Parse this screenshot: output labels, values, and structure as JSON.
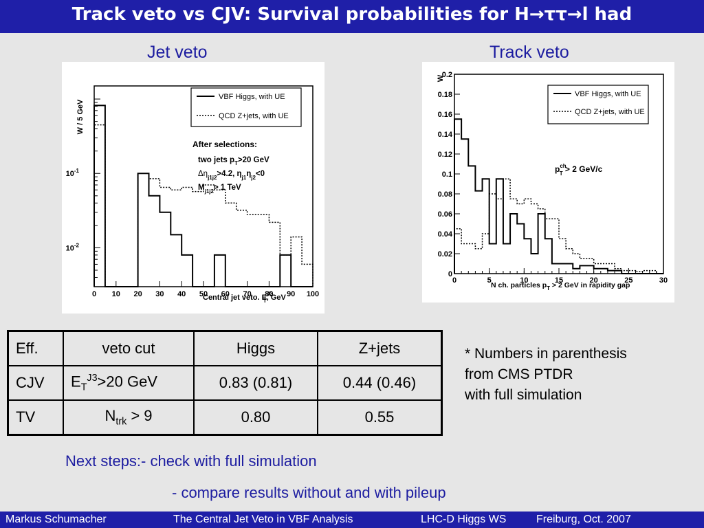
{
  "slide": {
    "title": "Track veto vs CJV: Survival probabilities for H→ττ→l had",
    "left_heading": "Jet veto",
    "right_heading": "Track veto"
  },
  "chart_data": [
    {
      "type": "histogram",
      "ylabel": "W / 5 GeV",
      "xlabel": "Central jet veto. E",
      "xlabel_sup": "J3",
      "xlabel_sub": "T",
      "xlabel_unit": ", GeV",
      "log_y": true,
      "xlim": [
        0,
        100
      ],
      "ylim": [
        0.003,
        1.5
      ],
      "x_ticks": [
        "0",
        "10",
        "20",
        "30",
        "40",
        "50",
        "60",
        "70",
        "80",
        "90",
        "100"
      ],
      "y_ticks": [
        {
          "base": "10",
          "exp": "-1",
          "value": 0.1
        },
        {
          "base": "10",
          "exp": "-2",
          "value": 0.01
        }
      ],
      "bin_width": 5,
      "legend": [
        {
          "label": "VBF Higgs, with UE",
          "style": "solid"
        },
        {
          "label": "QCD Z+jets, with UE",
          "style": "dotted"
        }
      ],
      "annotations": {
        "heading": "After selections:",
        "line1": "two jets p",
        "line1_sub": "T",
        "line1_end": ">20 GeV",
        "line2a": "Δη",
        "line2_sub1": "j1j2",
        "line2b": ">4.2, η",
        "line2_sub2": "j1",
        "line2c": "η",
        "line2_sub3": "j2",
        "line2d": "<0",
        "line3a": "M",
        "line3_sub": "j1j2",
        "line3b": "> 1 TeV"
      },
      "series": [
        {
          "name": "VBF Higgs, with UE",
          "style": "solid",
          "values": [
            0.82,
            0,
            0,
            0,
            0.1,
            0.05,
            0.03,
            0.015,
            0.008,
            0,
            0,
            0.008,
            0,
            0,
            0,
            0,
            0,
            0.008,
            0,
            0
          ]
        },
        {
          "name": "QCD Z+jets, with UE",
          "style": "dotted",
          "values": [
            0.45,
            0,
            0,
            0,
            0.1,
            0.085,
            0.065,
            0.06,
            0.065,
            0.057,
            0.07,
            0.06,
            0.04,
            0.032,
            0.028,
            0.028,
            0.022,
            0.008,
            0.014,
            0.006
          ]
        }
      ]
    },
    {
      "type": "histogram",
      "ylabel": "W",
      "xlabel": "N ch. particles p",
      "xlabel_sub": "T",
      "xlabel_end": " > 2 GeV in rapidity gap",
      "log_y": false,
      "xlim": [
        0,
        30
      ],
      "ylim": [
        0,
        0.2
      ],
      "x_ticks": [
        "0",
        "5",
        "10",
        "15",
        "20",
        "25",
        "30"
      ],
      "y_ticks": [
        "0",
        "0.02",
        "0.04",
        "0.06",
        "0.08",
        "0.1",
        "0.12",
        "0.14",
        "0.16",
        "0.18",
        "0.2"
      ],
      "bin_width": 1,
      "legend": [
        {
          "label": "VBF Higgs, with UE",
          "style": "solid"
        },
        {
          "label": "QCD Z+jets, with UE",
          "style": "dotted"
        }
      ],
      "annotation": {
        "a": "p",
        "sup": "ch",
        "sub": "T",
        "b": " > 2 GeV/c"
      },
      "series": [
        {
          "name": "VBF Higgs, with UE",
          "style": "solid",
          "values": [
            0.155,
            0.135,
            0.108,
            0.083,
            0.095,
            0.03,
            0.095,
            0.03,
            0.06,
            0.05,
            0.035,
            0.02,
            0.06,
            0.035,
            0.01,
            0.01,
            0.01,
            0.005,
            0.008,
            0.008,
            0.005,
            0.005,
            0.003,
            0.003,
            0,
            0,
            0,
            0,
            0,
            0
          ]
        },
        {
          "name": "QCD Z+jets, with UE",
          "style": "dotted",
          "values": [
            0.045,
            0.03,
            0.03,
            0.025,
            0.04,
            0.08,
            0.075,
            0.095,
            0.075,
            0.07,
            0.075,
            0.07,
            0.065,
            0.055,
            0.055,
            0.035,
            0.025,
            0.02,
            0.015,
            0.015,
            0.01,
            0.01,
            0.01,
            0.005,
            0.003,
            0.003,
            0.002,
            0.003,
            0.003,
            0
          ]
        }
      ]
    }
  ],
  "table": {
    "header": [
      "Eff.",
      "veto cut",
      "Higgs",
      "Z+jets"
    ],
    "rows": [
      {
        "label": "CJV",
        "cut_main": "E",
        "cut_sub": "T",
        "cut_sup": "J3",
        "cut_rest": ">20 GeV",
        "higgs": "0.83 (0.81)",
        "zjets": "0.44 (0.46)"
      },
      {
        "label": "TV",
        "cut_main": "N",
        "cut_sub": "trk",
        "cut_rest": " > 9",
        "higgs": "0.80",
        "zjets": "0.55"
      }
    ]
  },
  "note": {
    "line1": "* Numbers in parenthesis",
    "line2": "from CMS  PTDR",
    "line3": "with full simulation"
  },
  "steps": {
    "line1": "Next steps:- check with full simulation",
    "line2": "- compare results without and with pileup"
  },
  "footer": {
    "author": "Markus  Schumacher",
    "talk": "The Central Jet Veto in VBF Analysis",
    "event": "LHC-D Higgs WS",
    "place": "Freiburg, Oct. 2007"
  },
  "colors": {
    "bar": "#1f1fa8",
    "heading": "#1c1ca0",
    "background": "#e6e6e6"
  }
}
